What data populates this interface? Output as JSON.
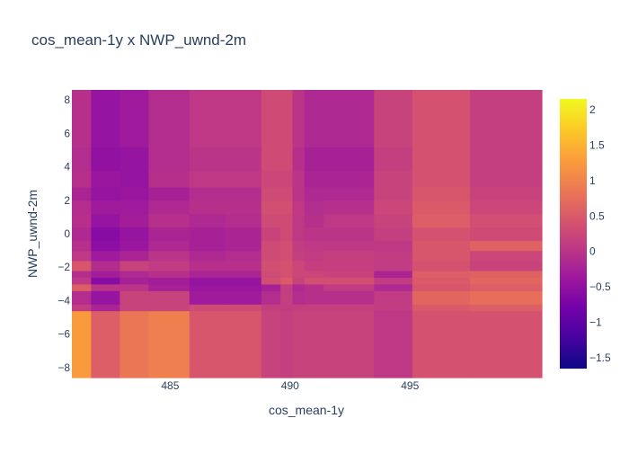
{
  "chart_data": {
    "type": "heatmap",
    "title": "cos_mean-1y x NWP_uwnd-2m",
    "xlabel": "cos_mean-1y",
    "ylabel": "NWP_uwnd-2m",
    "xlim": [
      480.9,
      500.5
    ],
    "ylim": [
      -8.6,
      8.6
    ],
    "x_ticks": [
      485,
      490,
      495
    ],
    "x_tick_labels": [
      "485",
      "490",
      "495"
    ],
    "y_ticks": [
      8,
      6,
      4,
      2,
      0,
      -2,
      -4,
      -6,
      -8
    ],
    "y_tick_labels": [
      "8",
      "6",
      "4",
      "2",
      "0",
      "−2",
      "−4",
      "−6",
      "−8"
    ],
    "x_edges": [
      480.9,
      481.7,
      482.9,
      484.1,
      485.8,
      487.3,
      488.8,
      489.6,
      490.1,
      490.6,
      491.4,
      493.5,
      495.1,
      497.5,
      500.5
    ],
    "y_edges": [
      -8.6,
      -4.6,
      -4.2,
      -3.4,
      -3.0,
      -2.6,
      -2.2,
      -1.6,
      -1.0,
      -0.4,
      0.4,
      1.2,
      2.0,
      2.8,
      3.8,
      5.2,
      8.6
    ],
    "z": [
      [
        1.25,
        0.55,
        0.85,
        0.95,
        0.45,
        0.45,
        0.2,
        0.15,
        0.2,
        0.2,
        0.2,
        0.05,
        0.4,
        0.4
      ],
      [
        0.1,
        -0.2,
        0.2,
        0.2,
        0.3,
        0.3,
        0.15,
        0.1,
        0.15,
        0.15,
        0.15,
        0.1,
        0.5,
        0.55
      ],
      [
        -0.1,
        -0.45,
        0.2,
        0.2,
        -0.35,
        -0.35,
        -0.1,
        0.15,
        -0.1,
        -0.05,
        -0.05,
        0.1,
        0.65,
        0.75
      ],
      [
        0.55,
        0.0,
        0.0,
        -0.25,
        -0.4,
        -0.4,
        -0.25,
        0.15,
        -0.15,
        -0.05,
        0.1,
        -0.15,
        0.45,
        0.55
      ],
      [
        0.05,
        -0.6,
        -0.25,
        -0.3,
        -0.45,
        -0.45,
        0.35,
        0.5,
        0.2,
        0.35,
        0.35,
        0.1,
        0.5,
        0.65
      ],
      [
        -0.1,
        -0.3,
        -0.15,
        -0.05,
        -0.2,
        -0.2,
        0.3,
        0.4,
        0.25,
        0.25,
        0.2,
        -0.2,
        0.55,
        0.6
      ],
      [
        0.45,
        -0.1,
        0.2,
        0.1,
        -0.05,
        -0.05,
        0.35,
        0.4,
        0.25,
        0.15,
        0.15,
        0.1,
        0.4,
        0.2
      ],
      [
        0.05,
        -0.35,
        -0.2,
        0.0,
        -0.15,
        -0.1,
        0.3,
        0.35,
        0.15,
        0.1,
        0.15,
        0.1,
        0.45,
        0.25
      ],
      [
        -0.05,
        -0.55,
        -0.4,
        -0.15,
        -0.25,
        -0.2,
        0.3,
        0.35,
        0.1,
        0.05,
        0.05,
        0.05,
        0.45,
        0.6
      ],
      [
        -0.15,
        -0.6,
        -0.45,
        -0.2,
        -0.25,
        -0.2,
        0.2,
        0.3,
        0.05,
        0.0,
        0.0,
        0.15,
        0.4,
        0.3
      ],
      [
        -0.05,
        -0.45,
        -0.3,
        -0.05,
        -0.15,
        -0.1,
        0.3,
        0.3,
        0.05,
        -0.05,
        0.05,
        0.2,
        0.55,
        0.35
      ],
      [
        -0.1,
        -0.35,
        -0.35,
        -0.15,
        -0.05,
        -0.05,
        0.35,
        0.35,
        0.05,
        -0.1,
        -0.05,
        0.25,
        0.5,
        0.25
      ],
      [
        -0.2,
        -0.45,
        -0.4,
        -0.25,
        -0.1,
        -0.1,
        0.3,
        0.3,
        0.0,
        -0.15,
        -0.15,
        0.2,
        0.45,
        0.2
      ],
      [
        -0.05,
        -0.4,
        -0.45,
        -0.05,
        0.05,
        0.05,
        0.25,
        0.25,
        0.0,
        -0.2,
        -0.2,
        0.2,
        0.4,
        0.15
      ],
      [
        -0.1,
        -0.5,
        -0.45,
        -0.1,
        0.0,
        0.0,
        0.3,
        0.3,
        -0.05,
        -0.25,
        -0.25,
        0.15,
        0.4,
        0.15
      ],
      [
        -0.05,
        -0.45,
        -0.35,
        -0.1,
        0.05,
        0.05,
        0.3,
        0.3,
        0.0,
        -0.15,
        -0.15,
        0.2,
        0.4,
        0.15
      ]
    ],
    "colorscale": {
      "zmin": -1.65,
      "zmax": 2.15,
      "stops": [
        [
          0.0,
          "#0d0887"
        ],
        [
          0.111,
          "#46039f"
        ],
        [
          0.222,
          "#7201a8"
        ],
        [
          0.333,
          "#9c179e"
        ],
        [
          0.444,
          "#bd3786"
        ],
        [
          0.556,
          "#d8576b"
        ],
        [
          0.667,
          "#ed7953"
        ],
        [
          0.778,
          "#fb9f3a"
        ],
        [
          0.889,
          "#fdca26"
        ],
        [
          1.0,
          "#f0f921"
        ]
      ],
      "ticks": [
        2,
        1.5,
        1,
        0.5,
        0,
        -0.5,
        -1,
        -1.5
      ],
      "tick_labels": [
        "2",
        "1.5",
        "1",
        "0.5",
        "0",
        "−0.5",
        "−1",
        "−1.5"
      ]
    },
    "grid": false
  }
}
